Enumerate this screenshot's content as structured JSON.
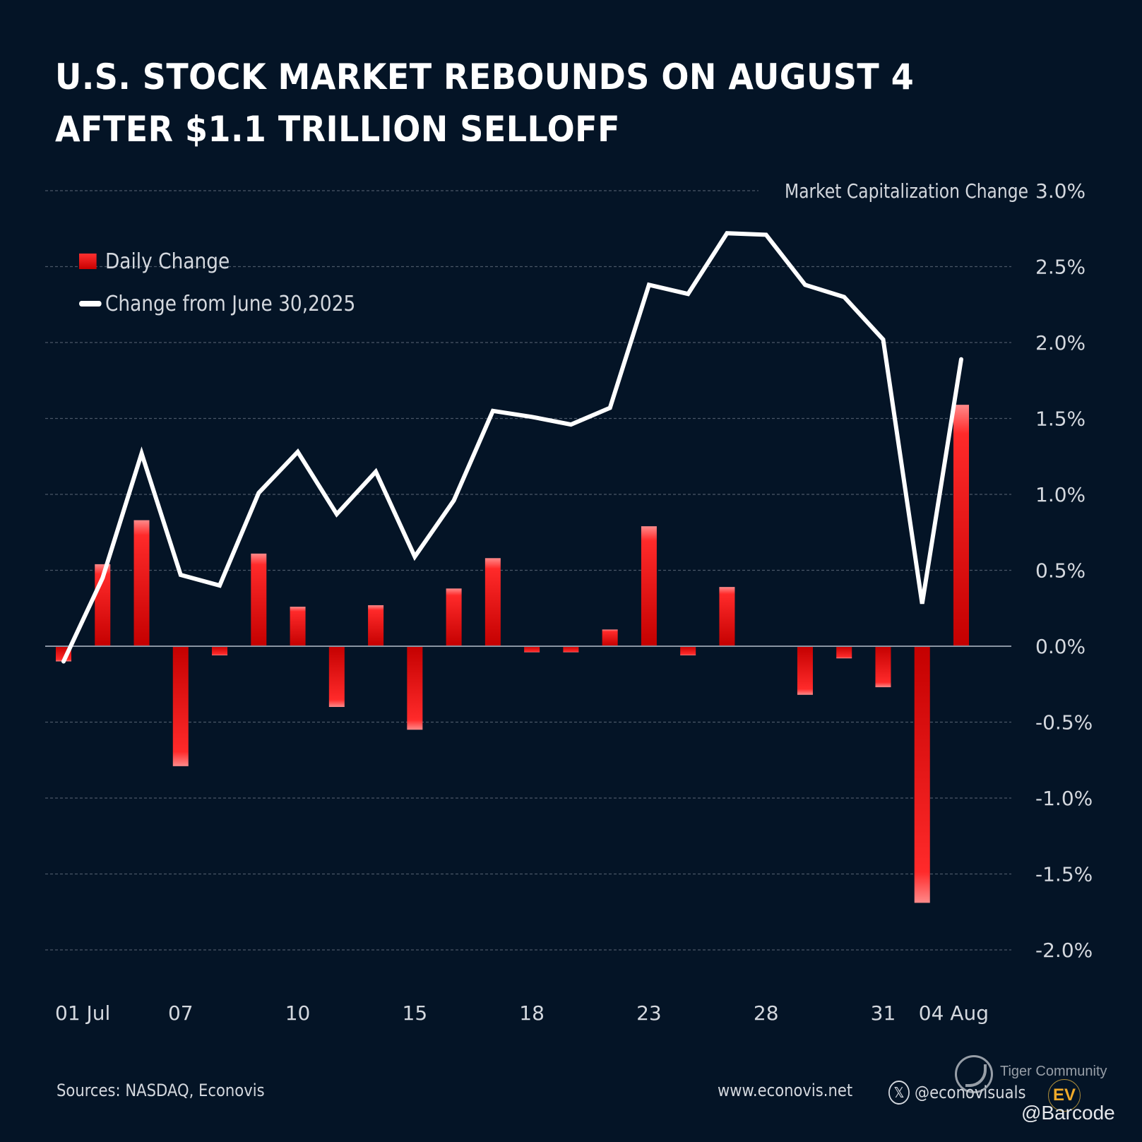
{
  "title": {
    "line1": "U.S. STOCK MARKET REBOUNDS ON AUGUST 4",
    "line2": "AFTER $1.1 TRILLION SELLOFF"
  },
  "legend": {
    "bar_label": "Daily Change",
    "line_label": "Change from June 30,2025"
  },
  "footer": {
    "sources": "Sources: NASDAQ, Econovis",
    "website": "www.econovis.net",
    "social_handle": "@econovisuals",
    "social_icon": "x-logo-icon"
  },
  "watermark": {
    "tiger_text": "Tiger Community",
    "ev_badge": "EV",
    "handle": "@Barcode"
  },
  "colors": {
    "background": "#041426",
    "bar_top": "#ff2a2a",
    "bar_bottom": "#c40000",
    "bar_tip": "#ff8a8a",
    "line": "#ffffff",
    "grid": "#4a5666",
    "zero_line": "#8a94a2",
    "text": "#d4d8de"
  },
  "chart_data": {
    "type": "bar+line",
    "title": "U.S. Stock Market Rebounds on August 4 After $1.1 Trillion Selloff",
    "ylabel": "Market Capitalization Change",
    "y_axis_position": "right",
    "ylim": [
      -2.0,
      3.0
    ],
    "yticks": [
      3.0,
      2.5,
      2.0,
      1.5,
      1.0,
      0.5,
      0.0,
      -0.5,
      -1.0,
      -1.5,
      -2.0
    ],
    "ytick_labels": [
      "3.0%",
      "2.5%",
      "2.0%",
      "1.5%",
      "1.0%",
      "0.5%",
      "0.0%",
      "-0.5%",
      "-1.0%",
      "-1.5%",
      "-2.0%"
    ],
    "grid": true,
    "legend_position": "top-left",
    "xtick_labels": [
      {
        "index": 0,
        "label": "01 Jul"
      },
      {
        "index": 3,
        "label": "07"
      },
      {
        "index": 6,
        "label": "10"
      },
      {
        "index": 9,
        "label": "15"
      },
      {
        "index": 12,
        "label": "18"
      },
      {
        "index": 15,
        "label": "23"
      },
      {
        "index": 18,
        "label": "28"
      },
      {
        "index": 21,
        "label": "31"
      },
      {
        "index": 23,
        "label": "04 Aug"
      }
    ],
    "n_points": 24,
    "series": [
      {
        "name": "Daily Change",
        "type": "bar",
        "unit": "%",
        "values": [
          -0.1,
          0.54,
          0.83,
          -0.79,
          -0.06,
          0.61,
          0.26,
          -0.4,
          0.27,
          -0.55,
          0.38,
          0.58,
          -0.04,
          -0.04,
          0.11,
          0.79,
          -0.06,
          0.39,
          0.0,
          -0.32,
          -0.08,
          -0.27,
          -1.69,
          1.59
        ]
      },
      {
        "name": "Change from June 30,2025",
        "type": "line",
        "unit": "%",
        "values": [
          -0.1,
          0.45,
          1.27,
          0.47,
          0.4,
          1.01,
          1.28,
          0.87,
          1.15,
          0.59,
          0.96,
          1.55,
          1.51,
          1.46,
          1.57,
          2.38,
          2.32,
          2.72,
          2.71,
          2.38,
          2.3,
          2.02,
          0.28,
          1.89
        ]
      }
    ]
  }
}
